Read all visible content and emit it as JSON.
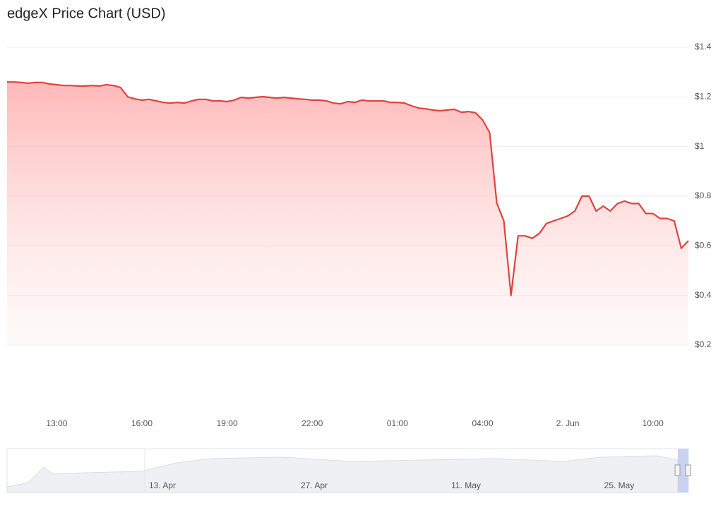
{
  "chart_data": {
    "type": "area",
    "title": "edgeX Price Chart (USD)",
    "categories": [
      null,
      null,
      null,
      null,
      null,
      null,
      null,
      "13:00",
      null,
      null,
      null,
      null,
      null,
      null,
      null,
      null,
      null,
      null,
      null,
      "16:00",
      null,
      null,
      null,
      null,
      null,
      null,
      null,
      null,
      null,
      null,
      null,
      "19:00",
      null,
      null,
      null,
      null,
      null,
      null,
      null,
      null,
      null,
      null,
      null,
      "22:00",
      null,
      null,
      null,
      null,
      null,
      null,
      null,
      null,
      null,
      null,
      null,
      "01:00",
      null,
      null,
      null,
      null,
      null,
      null,
      null,
      null,
      null,
      null,
      null,
      "04:00",
      null,
      null,
      null,
      null,
      null,
      null,
      null,
      null,
      null,
      null,
      null,
      "2. Jun",
      null,
      null,
      null,
      null,
      null,
      null,
      null,
      null,
      null,
      null,
      null,
      "10:00",
      null,
      null,
      null,
      null,
      null
    ],
    "series": [
      {
        "color": "#e0433f",
        "values": [
          1.26,
          1.26,
          1.258,
          1.255,
          1.258,
          1.258,
          1.252,
          1.249,
          1.246,
          1.246,
          1.244,
          1.244,
          1.246,
          1.244,
          1.249,
          1.246,
          1.238,
          1.2,
          1.192,
          1.187,
          1.19,
          1.184,
          1.178,
          1.175,
          1.178,
          1.175,
          1.184,
          1.19,
          1.19,
          1.184,
          1.184,
          1.181,
          1.187,
          1.198,
          1.195,
          1.198,
          1.201,
          1.198,
          1.195,
          1.198,
          1.195,
          1.192,
          1.19,
          1.187,
          1.187,
          1.184,
          1.175,
          1.172,
          1.181,
          1.178,
          1.187,
          1.184,
          1.184,
          1.184,
          1.178,
          1.178,
          1.175,
          1.164,
          1.155,
          1.152,
          1.147,
          1.144,
          1.147,
          1.15,
          1.138,
          1.141,
          1.136,
          1.107,
          1.056,
          0.772,
          0.7,
          0.4,
          0.64,
          0.64,
          0.63,
          0.65,
          0.69,
          0.7,
          0.71,
          0.72,
          0.74,
          0.8,
          0.8,
          0.74,
          0.76,
          0.74,
          0.77,
          0.78,
          0.77,
          0.77,
          0.73,
          0.73,
          0.71,
          0.71,
          0.7,
          0.59,
          0.62
        ]
      }
    ],
    "ylim": [
      0.2,
      1.4
    ],
    "yticks": [
      {
        "value": 0.2,
        "label": "$0.2"
      },
      {
        "value": 0.4,
        "label": "$0.4"
      },
      {
        "value": 0.6,
        "label": "$0.6"
      },
      {
        "value": 0.8,
        "label": "$0.8"
      },
      {
        "value": 1,
        "label": "$1"
      },
      {
        "value": 1.2,
        "label": "$1.2"
      },
      {
        "value": 1.4,
        "label": "$1.4"
      }
    ],
    "grid": true,
    "navigator_labels": [
      "13. Apr",
      "27. Apr",
      "11. May",
      "25. May"
    ]
  }
}
